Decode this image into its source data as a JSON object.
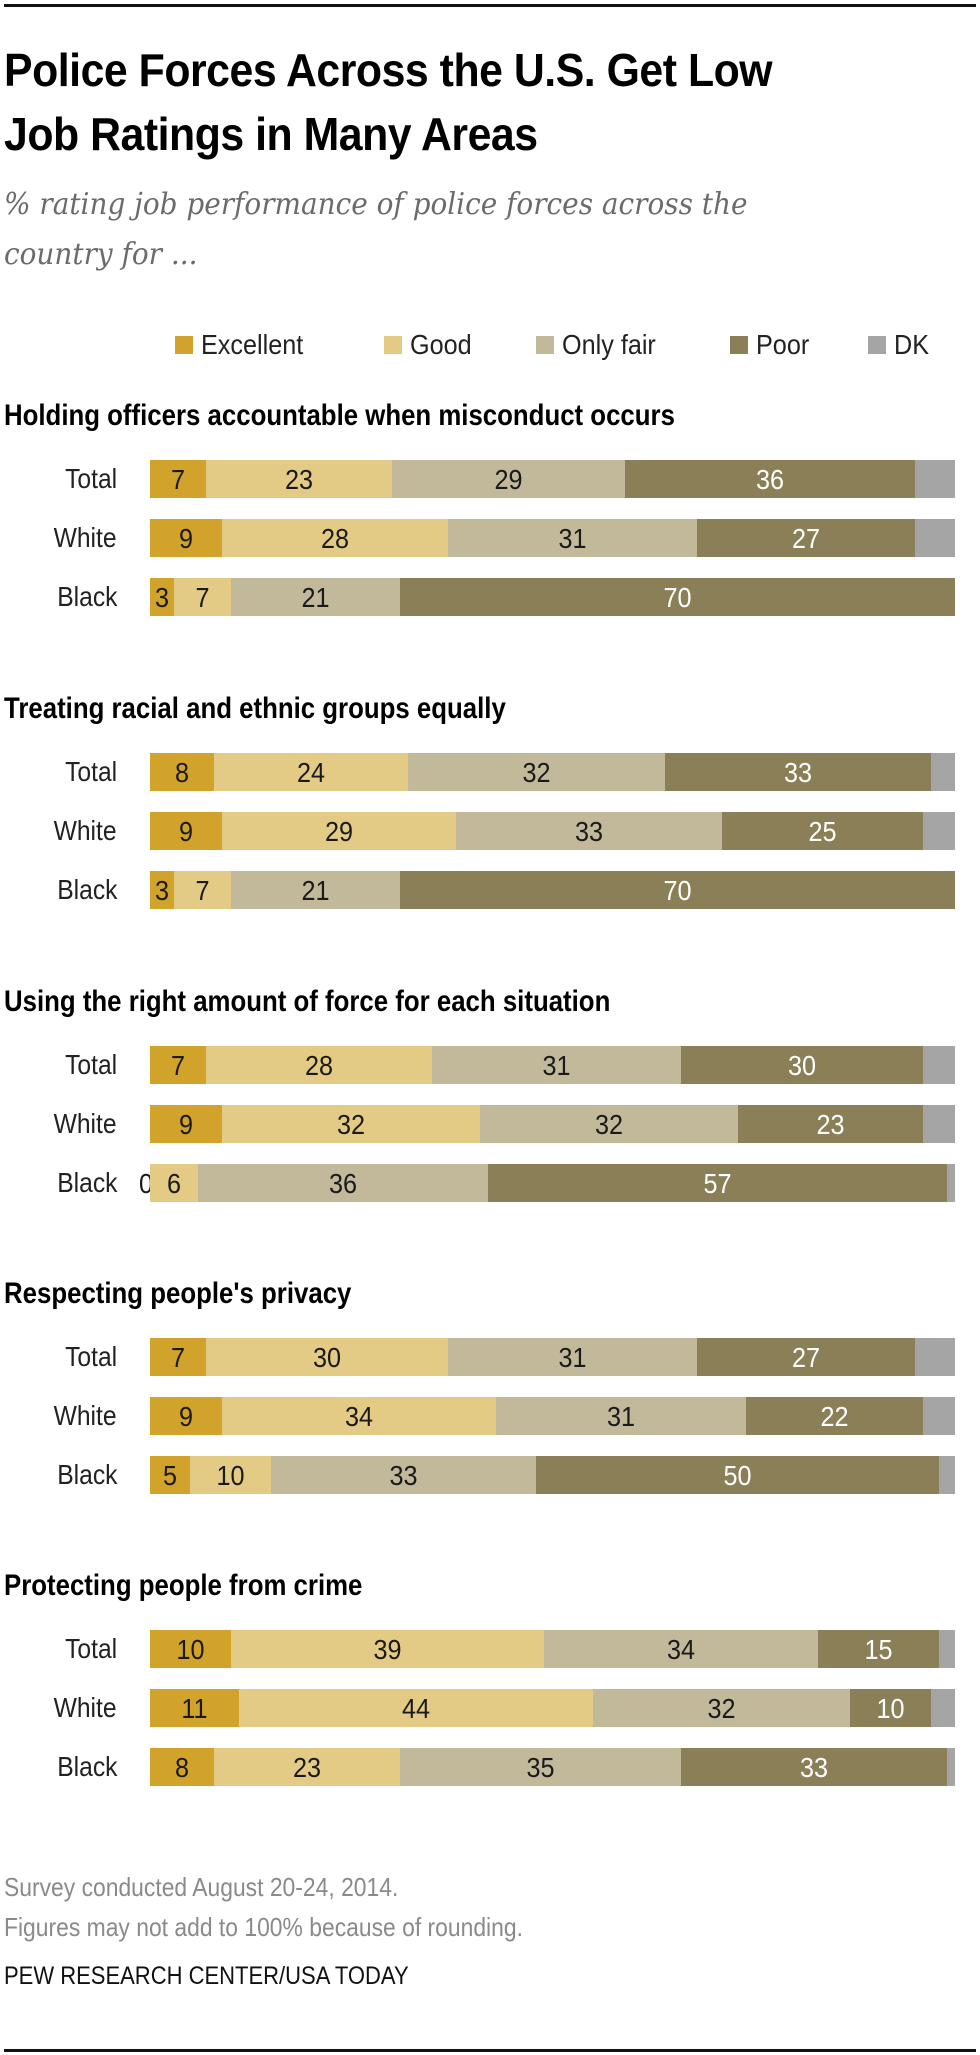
{
  "header": {
    "title_line1": "Police Forces Across the U.S. Get Low",
    "title_line2": "Job Ratings in Many Areas",
    "subtitle_line1": "% rating job performance of police forces across the",
    "subtitle_line2": "country for  ..."
  },
  "colors": {
    "excellent": "#D1A32B",
    "good": "#E3CB85",
    "only_fair": "#C1B99A",
    "poor": "#8B7F57",
    "dk": "#A5A5A5"
  },
  "legend": [
    {
      "key": "excellent",
      "label": "Excellent"
    },
    {
      "key": "good",
      "label": "Good"
    },
    {
      "key": "only_fair",
      "label": "Only fair"
    },
    {
      "key": "poor",
      "label": "Poor"
    },
    {
      "key": "dk",
      "label": "DK"
    }
  ],
  "chart_data": {
    "type": "bar",
    "orientation": "horizontal-stacked",
    "title": "Police Forces Across the U.S. Get Low Job Ratings in Many Areas",
    "subtitle": "% rating job performance of police forces across the country for ...",
    "series_names": [
      "Excellent",
      "Good",
      "Only fair",
      "Poor",
      "DK"
    ],
    "xlim": [
      0,
      100
    ],
    "legend_position": "top-right",
    "panels": [
      {
        "title": "Holding officers accountable when misconduct occurs",
        "rows": [
          {
            "label": "Total",
            "values": [
              7,
              23,
              29,
              36,
              5
            ]
          },
          {
            "label": "White",
            "values": [
              9,
              28,
              31,
              27,
              5
            ]
          },
          {
            "label": "Black",
            "values": [
              3,
              7,
              21,
              70,
              0
            ]
          }
        ]
      },
      {
        "title": "Treating racial and ethnic groups equally",
        "rows": [
          {
            "label": "Total",
            "values": [
              8,
              24,
              32,
              33,
              1
            ]
          },
          {
            "label": "White",
            "values": [
              9,
              29,
              33,
              25,
              2
            ]
          },
          {
            "label": "Black",
            "values": [
              3,
              7,
              21,
              70,
              0
            ]
          }
        ]
      },
      {
        "title": "Using the right amount of force for each situation",
        "rows": [
          {
            "label": "Total",
            "values": [
              7,
              28,
              31,
              30,
              2
            ]
          },
          {
            "label": "White",
            "values": [
              9,
              32,
              32,
              23,
              2
            ]
          },
          {
            "label": "Black",
            "values": [
              0,
              6,
              36,
              57,
              0
            ]
          }
        ]
      },
      {
        "title": "Respecting people's privacy",
        "rows": [
          {
            "label": "Total",
            "values": [
              7,
              30,
              31,
              27,
              3
            ]
          },
          {
            "label": "White",
            "values": [
              9,
              34,
              31,
              22,
              2
            ]
          },
          {
            "label": "Black",
            "values": [
              5,
              10,
              33,
              50,
              0
            ]
          }
        ]
      },
      {
        "title": "Protecting people  from crime",
        "rows": [
          {
            "label": "Total",
            "values": [
              10,
              39,
              34,
              15,
              0
            ]
          },
          {
            "label": "White",
            "values": [
              11,
              44,
              32,
              10,
              1
            ]
          },
          {
            "label": "Black",
            "values": [
              8,
              23,
              35,
              33,
              0
            ]
          }
        ]
      }
    ]
  },
  "footer": {
    "note1": "Survey conducted August 20-24, 2014.",
    "note2": "Figures may not add to 100% because of rounding.",
    "source": "PEW RESEARCH CENTER/USA TODAY"
  }
}
